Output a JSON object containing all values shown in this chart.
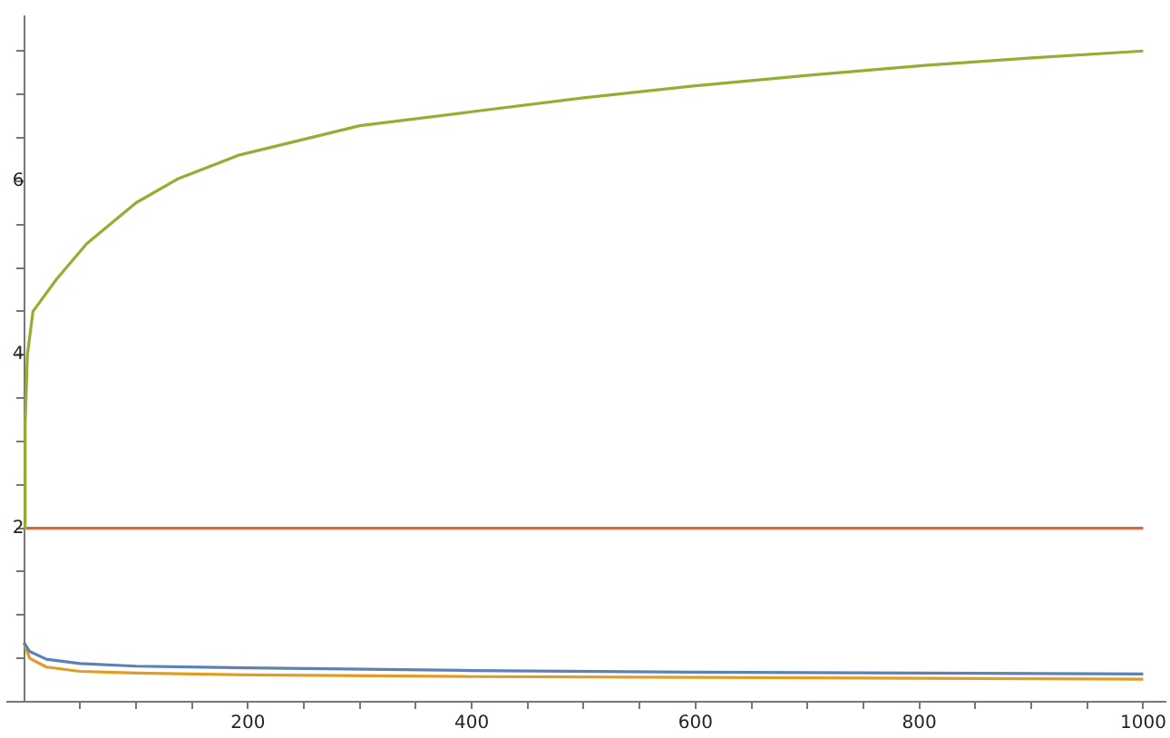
{
  "chart_data": {
    "type": "line",
    "xlim": [
      -15,
      1020
    ],
    "ylim": [
      0,
      7.9
    ],
    "xticks": [
      {
        "value": 50,
        "label": null
      },
      {
        "value": 100,
        "label": null
      },
      {
        "value": 150,
        "label": null
      },
      200,
      {
        "value": 250,
        "label": null
      },
      {
        "value": 300,
        "label": null
      },
      {
        "value": 350,
        "label": null
      },
      400,
      {
        "value": 450,
        "label": null
      },
      {
        "value": 500,
        "label": null
      },
      {
        "value": 550,
        "label": null
      },
      600,
      {
        "value": 650,
        "label": null
      },
      {
        "value": 700,
        "label": null
      },
      {
        "value": 750,
        "label": null
      },
      800,
      {
        "value": 850,
        "label": null
      },
      {
        "value": 900,
        "label": null
      },
      {
        "value": 950,
        "label": null
      },
      1000
    ],
    "yticks": [
      {
        "value": 0.5,
        "label": null
      },
      {
        "value": 1,
        "label": null
      },
      {
        "value": 1.5,
        "label": null
      },
      2,
      {
        "value": 2.5,
        "label": null
      },
      {
        "value": 3,
        "label": null
      },
      {
        "value": 3.5,
        "label": null
      },
      4,
      {
        "value": 4.5,
        "label": null
      },
      {
        "value": 5,
        "label": null
      },
      {
        "value": 5.5,
        "label": null
      },
      6,
      {
        "value": 6.5,
        "label": null
      },
      {
        "value": 7,
        "label": null
      },
      {
        "value": 7.5,
        "label": null
      }
    ],
    "grid": false,
    "legend": false,
    "marker": "none",
    "line_style": "solid",
    "series": [
      {
        "color": "#5e81b5",
        "x": [
          0,
          5,
          20,
          50,
          100,
          200,
          400,
          600,
          800,
          1000
        ],
        "values": [
          0.68,
          0.58,
          0.49,
          0.44,
          0.41,
          0.39,
          0.36,
          0.34,
          0.33,
          0.32
        ]
      },
      {
        "color": "#e19c24",
        "x": [
          0,
          5,
          20,
          50,
          100,
          200,
          400,
          600,
          800,
          1000
        ],
        "values": [
          0.68,
          0.5,
          0.4,
          0.35,
          0.33,
          0.31,
          0.29,
          0.28,
          0.27,
          0.26
        ]
      },
      {
        "color": "#8fb032",
        "x": [
          0,
          1,
          3,
          8,
          29,
          56,
          100,
          138,
          192,
          300,
          400,
          500,
          600,
          700,
          800,
          900,
          1000
        ],
        "values": [
          2,
          3.2,
          4.0,
          4.5,
          4.87,
          5.28,
          5.75,
          6.03,
          6.3,
          6.64,
          6.8,
          6.96,
          7.1,
          7.22,
          7.33,
          7.42,
          7.5
        ]
      },
      {
        "color": "#eb6235",
        "x": [
          0,
          1000
        ],
        "values": [
          2,
          2
        ]
      }
    ]
  }
}
